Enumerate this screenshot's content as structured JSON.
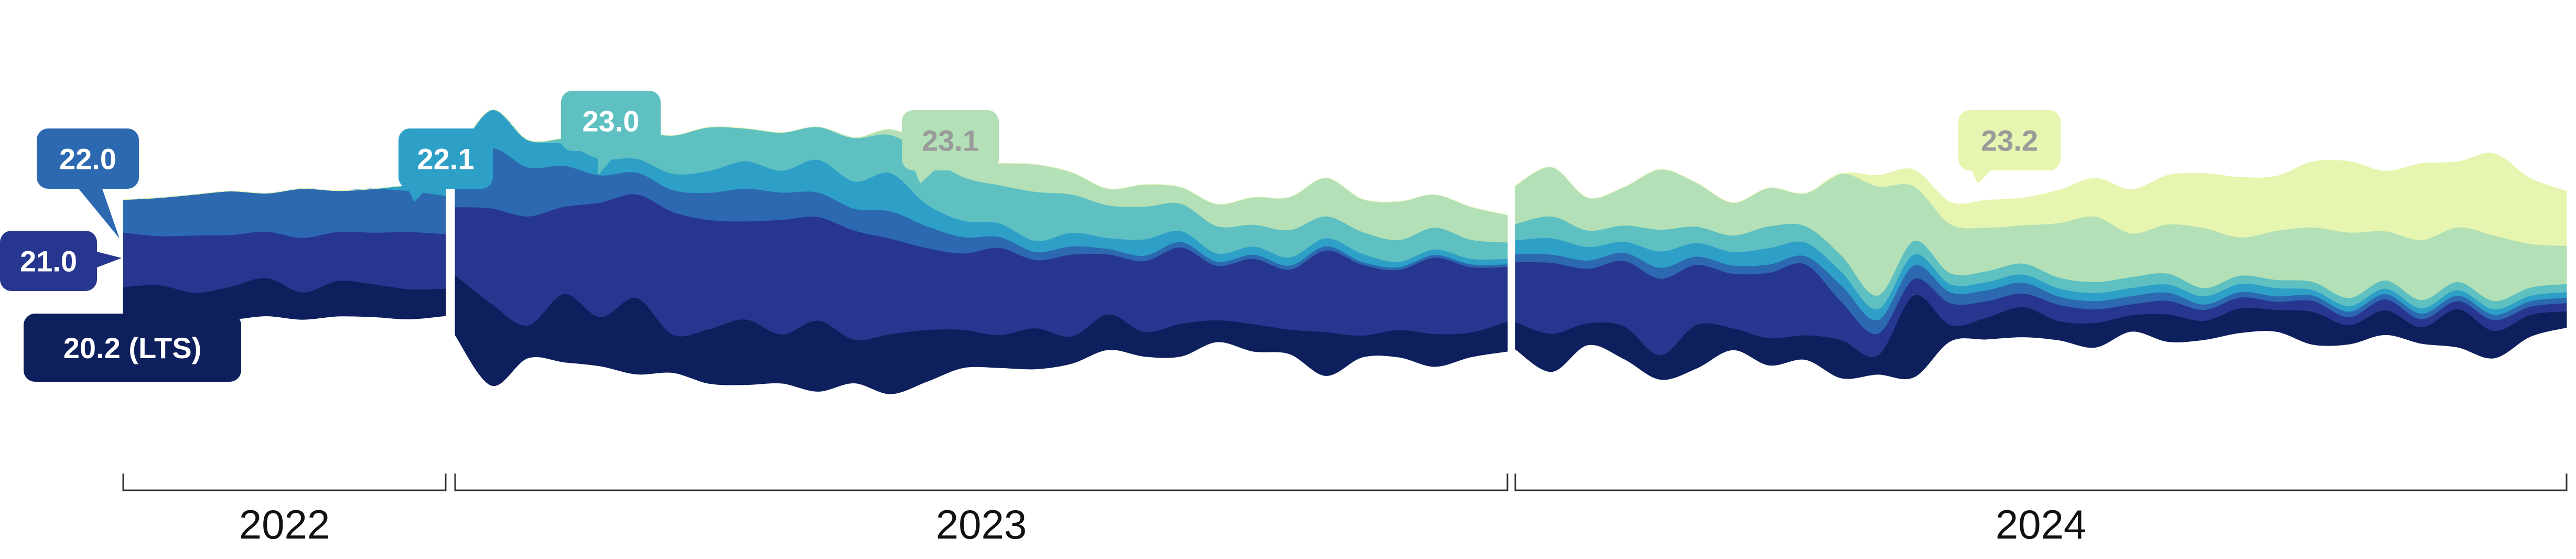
{
  "chart_data": {
    "type": "area",
    "subtype": "streamgraph",
    "title": "",
    "xlabel": "",
    "ylabel": "",
    "x_groups": [
      "2022",
      "2023",
      "2024"
    ],
    "series": [
      {
        "name": "20.2 (LTS)",
        "color": "#0d1f5c",
        "text_color": "#ffffff",
        "values": [
          [
            10,
            11,
            9,
            12,
            14,
            10,
            13,
            12,
            11,
            10
          ],
          [
            22,
            30,
            12,
            25,
            18,
            28,
            14,
            20,
            24,
            18,
            26,
            16,
            22,
            19,
            14,
            12,
            15,
            10,
            13,
            9,
            12,
            8,
            10,
            9,
            16,
            8,
            10,
            12,
            9,
            11
          ],
          [
            10,
            14,
            8,
            12,
            9,
            16,
            8,
            10,
            9,
            14,
            7,
            30,
            6,
            8,
            11,
            7,
            9,
            6,
            10,
            7,
            9,
            8,
            12,
            7,
            9,
            6,
            14,
            10,
            8,
            6
          ]
        ]
      },
      {
        "name": "21.0",
        "color": "#27378f",
        "text_color": "#ffffff",
        "values": [
          [
            20,
            18,
            21,
            19,
            17,
            20,
            18,
            19,
            21,
            20
          ],
          [
            25,
            35,
            40,
            32,
            42,
            38,
            45,
            40,
            36,
            42,
            38,
            40,
            35,
            30,
            28,
            32,
            25,
            30,
            22,
            26,
            28,
            20,
            24,
            22,
            30,
            26,
            22,
            28,
            24,
            20
          ],
          [
            22,
            26,
            20,
            24,
            28,
            22,
            20,
            24,
            26,
            14,
            8,
            6,
            8,
            6,
            5,
            6,
            5,
            4,
            5,
            4,
            4,
            3,
            4,
            3,
            4,
            3,
            3,
            4,
            3,
            3
          ]
        ]
      },
      {
        "name": "22.0",
        "color": "#2c69b0",
        "text_color": "#ffffff",
        "values": [
          [
            12,
            14,
            15,
            16,
            14,
            18,
            15,
            16,
            15,
            14
          ],
          [
            12,
            22,
            18,
            15,
            10,
            8,
            8,
            10,
            12,
            10,
            9,
            8,
            10,
            8,
            6,
            4,
            3,
            3,
            2,
            2,
            2,
            1.5,
            1.5,
            1.5,
            1.5,
            1,
            1,
            1,
            1,
            1
          ],
          [
            3,
            3,
            3,
            3,
            4,
            3,
            3,
            3,
            3,
            6,
            5,
            5,
            4,
            4,
            4,
            3,
            3,
            3,
            3,
            2,
            2,
            2,
            2,
            2,
            2,
            2,
            2,
            2,
            2,
            2
          ]
        ]
      },
      {
        "name": "22.1",
        "color": "#2e9fc7",
        "text_color": "#ffffff",
        "values": [
          [
            0,
            0,
            0,
            0,
            0,
            0,
            0,
            0,
            2,
            3
          ],
          [
            6,
            14,
            10,
            8,
            6,
            5,
            6,
            8,
            10,
            8,
            12,
            10,
            14,
            8,
            6,
            5,
            4,
            5,
            4,
            6,
            4,
            3,
            3,
            3,
            3,
            3,
            2,
            2,
            2,
            2
          ],
          [
            5,
            6,
            5,
            4,
            6,
            5,
            5,
            6,
            5,
            5,
            4,
            4,
            3,
            3,
            3,
            3,
            3,
            3,
            3,
            3,
            3,
            3,
            2,
            2,
            2,
            2,
            2,
            2,
            2,
            2
          ]
        ]
      },
      {
        "name": "23.0",
        "color": "#5ec0c0",
        "text_color": "#ffffff",
        "values": [
          [
            0,
            0,
            0,
            0,
            0,
            0,
            0,
            0,
            0,
            0
          ],
          [
            0,
            0,
            0,
            2,
            8,
            10,
            14,
            16,
            12,
            14,
            12,
            16,
            14,
            18,
            16,
            14,
            18,
            14,
            12,
            12,
            10,
            10,
            8,
            10,
            8,
            8,
            8,
            8,
            7,
            6
          ],
          [
            6,
            8,
            6,
            6,
            8,
            6,
            6,
            8,
            6,
            6,
            5,
            5,
            4,
            4,
            4,
            4,
            4,
            4,
            4,
            3,
            3,
            3,
            3,
            3,
            3,
            3,
            3,
            3,
            3,
            3
          ]
        ]
      },
      {
        "name": "23.1",
        "color": "#b3e0b6",
        "text_color": "#9a9a9a",
        "values": [
          [
            0,
            0,
            0,
            0,
            0,
            0,
            0,
            0,
            0,
            0
          ],
          [
            0,
            0,
            0,
            0,
            0,
            0,
            0,
            0,
            0,
            0,
            0,
            0,
            2,
            4,
            6,
            8,
            10,
            8,
            6,
            8,
            6,
            8,
            10,
            12,
            14,
            12,
            14,
            12,
            12,
            10
          ],
          [
            14,
            18,
            12,
            14,
            22,
            16,
            12,
            14,
            12,
            30,
            40,
            20,
            18,
            16,
            14,
            20,
            24,
            16,
            18,
            22,
            14,
            18,
            20,
            24,
            18,
            22,
            20,
            24,
            16,
            14
          ]
        ]
      },
      {
        "name": "23.2",
        "color": "#e6f5b0",
        "text_color": "#9a9a9a",
        "values": [
          [
            0,
            0,
            0,
            0,
            0,
            0,
            0,
            0,
            0,
            0
          ],
          [
            0,
            0,
            0,
            0,
            0,
            0,
            0,
            0,
            0,
            0,
            0,
            0,
            0,
            0,
            0,
            0,
            0,
            0,
            0,
            0,
            0,
            0,
            0,
            0,
            0,
            0,
            0,
            0,
            0,
            0
          ],
          [
            0,
            0,
            0,
            0,
            0,
            0,
            0,
            0,
            0,
            0,
            4,
            6,
            8,
            10,
            10,
            12,
            14,
            16,
            18,
            20,
            22,
            20,
            24,
            26,
            22,
            28,
            24,
            30,
            24,
            20
          ]
        ]
      }
    ],
    "labels": [
      {
        "series": "22.0",
        "text": "22.0"
      },
      {
        "series": "21.0",
        "text": "21.0"
      },
      {
        "series": "20.2 (LTS)",
        "text": "20.2 (LTS)"
      },
      {
        "series": "22.1",
        "text": "22.1"
      },
      {
        "series": "23.0",
        "text": "23.0"
      },
      {
        "series": "23.1",
        "text": "23.1"
      },
      {
        "series": "23.2",
        "text": "23.2"
      }
    ],
    "legend": "none",
    "grid": false
  }
}
